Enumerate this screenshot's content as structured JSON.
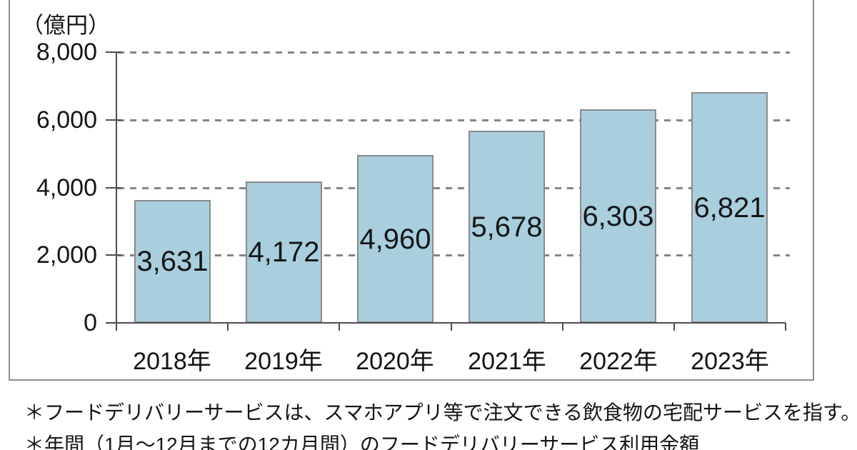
{
  "chart_data": {
    "type": "bar",
    "unit_label": "（億円）",
    "categories": [
      "2018年",
      "2019年",
      "2020年",
      "2021年",
      "2022年",
      "2023年"
    ],
    "values": [
      3631,
      4172,
      4960,
      5678,
      6303,
      6821
    ],
    "value_labels": [
      "3,631",
      "4,172",
      "4,960",
      "5,678",
      "6,303",
      "6,821"
    ],
    "xlabel": "",
    "ylabel": "億円",
    "ylim": [
      0,
      8000
    ],
    "yticks": [
      0,
      2000,
      4000,
      6000,
      8000
    ],
    "ytick_labels": [
      "0",
      "2,000",
      "4,000",
      "6,000",
      "8,000"
    ],
    "grid": "horizontal-dashed",
    "legend": "none",
    "bar_color": "#a9cfde",
    "bar_border_color": "#8a8a8a",
    "axis_color": "#4d4d4d",
    "grid_color": "#858585",
    "frame_border_color": "#8c8c8c"
  },
  "footnotes": [
    "＊フードデリバリーサービスは、スマホアプリ等で注文できる飲食物の宅配サービスを指す。",
    "＊年間（1月～12月までの12カ月間）のフードデリバリーサービス利用金額"
  ]
}
